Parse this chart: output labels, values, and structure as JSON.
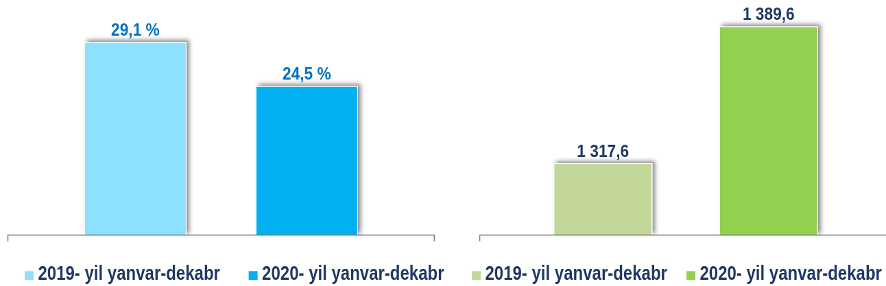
{
  "chart_data": [
    {
      "type": "bar",
      "categories": [
        null
      ],
      "series": [
        {
          "name": "2019- yil yanvar-dekabr",
          "color": "#8de0fe",
          "values": [
            29.1
          ],
          "value_labels": [
            "29,1 %"
          ]
        },
        {
          "name": "2020- yil yanvar-dekabr",
          "color": "#00b0f0",
          "values": [
            24.5
          ],
          "value_labels": [
            "24,5 %"
          ]
        }
      ],
      "ylim": [
        9,
        29.1
      ],
      "tick_labels": false,
      "legend": "bottom"
    },
    {
      "type": "bar",
      "categories": [
        null
      ],
      "series": [
        {
          "name": "2019- yil yanvar-dekabr",
          "color": "#c4d79b",
          "values": [
            1317.6
          ],
          "value_labels": [
            "1 317,6"
          ]
        },
        {
          "name": "2020- yil yanvar-dekabr",
          "color": "#92d050",
          "values": [
            1389.6
          ],
          "value_labels": [
            "1 389,6"
          ]
        }
      ],
      "ylim": [
        1280,
        1389.6
      ],
      "tick_labels": false,
      "legend": "bottom"
    }
  ]
}
